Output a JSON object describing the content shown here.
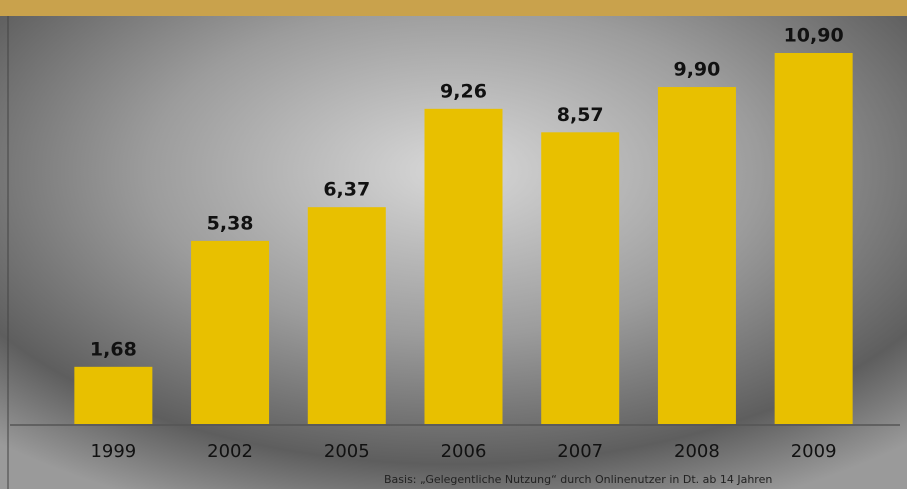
{
  "chart_data": {
    "type": "bar",
    "categories": [
      "1999",
      "2002",
      "2005",
      "2006",
      "2007",
      "2008",
      "2009"
    ],
    "values": [
      1.68,
      5.38,
      6.37,
      9.26,
      8.57,
      9.9,
      10.9
    ],
    "value_labels": [
      "1,68",
      "5,38",
      "6,37",
      "9,26",
      "8,57",
      "9,90",
      "10,90"
    ],
    "color": "#e8c000",
    "note": "Basis: „Gelegentliche Nutzung“ durch Onlinenutzer in Dt. ab 14 Jahren"
  }
}
